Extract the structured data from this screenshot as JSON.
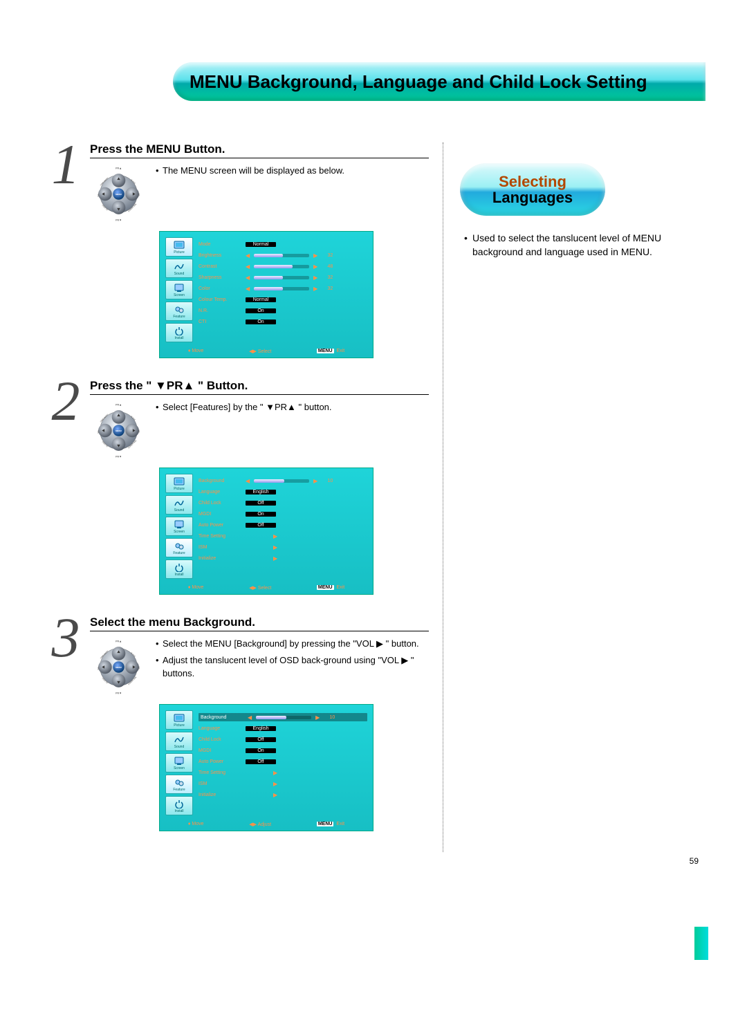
{
  "page_number": "59",
  "banner_title": "MENU Background, Language and Child Lock Setting",
  "section": {
    "line1": "Selecting",
    "line2": "Languages",
    "desc": "Used to select the tanslucent level of MENU background and language used in MENU."
  },
  "steps": [
    {
      "num": "1",
      "title": "Press the MENU Button.",
      "bullets": [
        "The MENU screen will be displayed as below."
      ],
      "osd": {
        "sidebar": [
          "Picture",
          "Sound",
          "Screen",
          "Feature",
          "Install"
        ],
        "active": 0,
        "rows": [
          {
            "label": "Mode",
            "type": "pill",
            "value": "Normal"
          },
          {
            "label": "Brightness",
            "type": "bar",
            "fill": 0.52,
            "value": "32"
          },
          {
            "label": "Contrast",
            "type": "bar",
            "fill": 0.7,
            "value": "48"
          },
          {
            "label": "Sharpness",
            "type": "bar",
            "fill": 0.52,
            "value": "32"
          },
          {
            "label": "Color",
            "type": "bar",
            "fill": 0.52,
            "value": "32"
          },
          {
            "label": "Colour Temp.",
            "type": "pill",
            "value": "Normal"
          },
          {
            "label": "N.R.",
            "type": "pill",
            "value": "On"
          },
          {
            "label": "CTI",
            "type": "pill",
            "value": "On"
          }
        ],
        "footer": {
          "move": "Move",
          "select": "Select",
          "exit_btn": "MENU",
          "exit": "Exit"
        }
      }
    },
    {
      "num": "2",
      "title": "Press the \"  ▼PR▲  \" Button.",
      "bullets": [
        "Select [Features] by the \" ▼PR▲ \" button."
      ],
      "osd": {
        "sidebar": [
          "Picture",
          "Sound",
          "Screen",
          "Feature",
          "Install"
        ],
        "active": 3,
        "rows": [
          {
            "label": "Background",
            "type": "bar",
            "fill": 0.55,
            "value": "10"
          },
          {
            "label": "Language",
            "type": "pill",
            "value": "English"
          },
          {
            "label": "Child Lock",
            "type": "pill",
            "value": "Off"
          },
          {
            "label": "MGDI",
            "type": "pill",
            "value": "On"
          },
          {
            "label": "Auto Power",
            "type": "pill",
            "value": "Off"
          },
          {
            "label": "Time Setting",
            "type": "arrow"
          },
          {
            "label": "ISM",
            "type": "arrow"
          },
          {
            "label": "Initialize",
            "type": "arrow"
          }
        ],
        "footer": {
          "move": "Move",
          "select": "Select",
          "exit_btn": "MENU",
          "exit": "Exit"
        }
      }
    },
    {
      "num": "3",
      "title": "Select the menu Background.",
      "bullets": [
        "Select the MENU [Background] by pressing the \"VOL ▶ \" button.",
        "Adjust the tanslucent level of OSD back-ground using \"VOL ▶ \" buttons."
      ],
      "osd": {
        "sidebar": [
          "Picture",
          "Sound",
          "Screen",
          "Feature",
          "Install"
        ],
        "active": 3,
        "selected_row": 0,
        "rows": [
          {
            "label": "Background",
            "type": "bar",
            "fill": 0.55,
            "value": "10"
          },
          {
            "label": "Language",
            "type": "pill",
            "value": "English"
          },
          {
            "label": "Child Lock",
            "type": "pill",
            "value": "Off"
          },
          {
            "label": "MGDI",
            "type": "pill",
            "value": "On"
          },
          {
            "label": "Auto Power",
            "type": "pill",
            "value": "Off"
          },
          {
            "label": "Time Setting",
            "type": "arrow"
          },
          {
            "label": "ISM",
            "type": "arrow"
          },
          {
            "label": "Initialize",
            "type": "arrow"
          }
        ],
        "footer": {
          "move": "Move",
          "select": "Adjust",
          "exit_btn": "MENU",
          "exit": "Exit"
        }
      }
    }
  ],
  "joypad": {
    "top": "PR▲",
    "bottom": "PR▼",
    "left_top": "COMPONENT",
    "right_top": "PC/DVI",
    "left_bot": "PREV PR",
    "right_bot": "SCREEN SIZE",
    "left": "VOL",
    "right": "VOL",
    "center": "MENU"
  },
  "colors": {
    "banner_grad_top": "#b8f3f8",
    "banner_grad_bot": "#0c9",
    "osd_bg_top": "#1fd4d9",
    "osd_bg_bot": "#17bfc4",
    "osd_label": "#ff9147",
    "pill_bg": "#000",
    "pill_fg": "#fff",
    "section_accent": "#b34700",
    "title_text": "#000"
  }
}
